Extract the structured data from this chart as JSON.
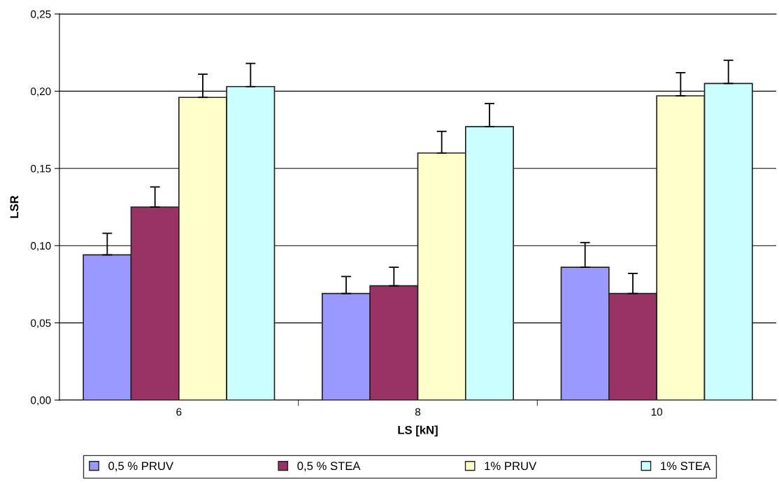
{
  "chart_data": {
    "type": "bar",
    "xlabel": "LS [kN]",
    "ylabel": "LSR",
    "categories": [
      "6",
      "8",
      "10"
    ],
    "series": [
      {
        "name": "0,5 % PRUV",
        "color": "#9999ff",
        "values": [
          0.094,
          0.069,
          0.086
        ],
        "errors": [
          [
            0.094,
            0.108
          ],
          [
            0.069,
            0.08
          ],
          [
            0.086,
            0.102
          ]
        ]
      },
      {
        "name": "0,5 % STEA",
        "color": "#993366",
        "values": [
          0.125,
          0.074,
          0.069
        ],
        "errors": [
          [
            0.125,
            0.138
          ],
          [
            0.074,
            0.086
          ],
          [
            0.069,
            0.082
          ]
        ]
      },
      {
        "name": "1% PRUV",
        "color": "#ffffcc",
        "values": [
          0.196,
          0.16,
          0.197
        ],
        "errors": [
          [
            0.196,
            0.211
          ],
          [
            0.16,
            0.174
          ],
          [
            0.197,
            0.212
          ]
        ]
      },
      {
        "name": "1% STEA",
        "color": "#ccffff",
        "values": [
          0.203,
          0.177,
          0.205
        ],
        "errors": [
          [
            0.203,
            0.218
          ],
          [
            0.177,
            0.192
          ],
          [
            0.205,
            0.22
          ]
        ]
      }
    ],
    "ylim": [
      0,
      0.25
    ],
    "yticks": [
      {
        "value": 0,
        "label": "0,00"
      },
      {
        "value": 0.05,
        "label": "0,05"
      },
      {
        "value": 0.1,
        "label": "0,10"
      },
      {
        "value": 0.15,
        "label": "0,15"
      },
      {
        "value": 0.2,
        "label": "0,20"
      },
      {
        "value": 0.25,
        "label": "0,25"
      }
    ],
    "grid": "y",
    "legend": "bottom"
  }
}
